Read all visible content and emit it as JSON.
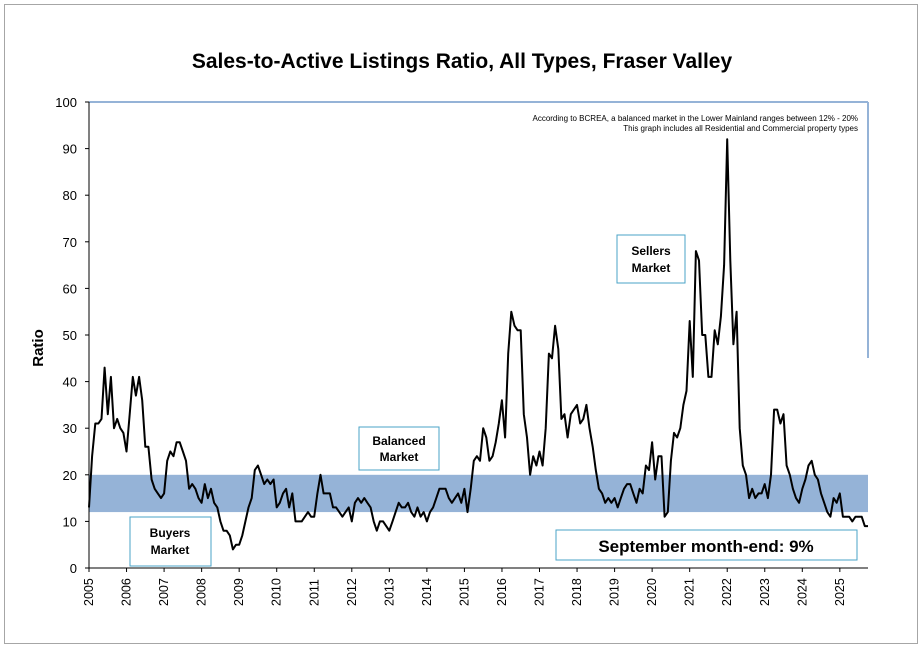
{
  "chart_data": {
    "type": "line",
    "title": "Sales-to-Active Listings Ratio, All Types, Fraser Valley",
    "ylabel": "Ratio",
    "xlabel": "",
    "ylim": [
      0,
      100
    ],
    "yticks": [
      0,
      10,
      20,
      30,
      40,
      50,
      60,
      70,
      80,
      90,
      100
    ],
    "xlim": [
      2005.0,
      2025.75
    ],
    "xticks": [
      "2005",
      "2006",
      "2007",
      "2008",
      "2009",
      "2010",
      "2011",
      "2012",
      "2013",
      "2014",
      "2015",
      "2016",
      "2017",
      "2018",
      "2019",
      "2020",
      "2021",
      "2022",
      "2023",
      "2024",
      "2025"
    ],
    "balanced_band": [
      12,
      20
    ],
    "notes": [
      "According to BCREA, a balanced market in the Lower Mainland ranges between 12% - 20%",
      "This graph includes all Residential and Commercial property types"
    ],
    "labels": {
      "sellers_line1": "Sellers",
      "sellers_line2": "Market",
      "balanced_line1": "Balanced",
      "balanced_line2": "Market",
      "buyers_line1": "Buyers",
      "buyers_line2": "Market"
    },
    "footer": "September month-end: 9%",
    "series": [
      {
        "name": "Sales-to-Active Listings Ratio",
        "x_start": 2005.0,
        "step": 0.08333,
        "values": [
          13,
          24,
          31,
          31,
          32,
          43,
          33,
          41,
          30,
          32,
          30,
          29,
          25,
          33,
          41,
          37,
          41,
          36,
          26,
          26,
          19,
          17,
          16,
          15,
          16,
          23,
          25,
          24,
          27,
          27,
          25,
          23,
          17,
          18,
          17,
          15,
          14,
          18,
          15,
          17,
          14,
          13,
          10,
          8,
          8,
          7,
          4,
          5,
          5,
          7,
          10,
          13,
          15,
          21,
          22,
          20,
          18,
          19,
          18,
          19,
          13,
          14,
          16,
          17,
          13,
          16,
          10,
          10,
          10,
          11,
          12,
          11,
          11,
          16,
          20,
          16,
          16,
          16,
          13,
          13,
          12,
          11,
          12,
          13,
          10,
          14,
          15,
          14,
          15,
          14,
          13,
          10,
          8,
          10,
          10,
          9,
          8,
          10,
          12,
          14,
          13,
          13,
          14,
          12,
          11,
          13,
          11,
          12,
          10,
          12,
          13,
          15,
          17,
          17,
          17,
          15,
          14,
          15,
          16,
          14,
          17,
          12,
          17,
          23,
          24,
          23,
          30,
          28,
          23,
          24,
          27,
          31,
          36,
          28,
          46,
          55,
          52,
          51,
          51,
          33,
          28,
          20,
          24,
          22,
          25,
          22,
          30,
          46,
          45,
          52,
          47,
          32,
          33,
          28,
          33,
          34,
          35,
          31,
          32,
          35,
          30,
          26,
          21,
          17,
          16,
          14,
          15,
          14,
          15,
          13,
          15,
          17,
          18,
          18,
          16,
          14,
          17,
          16,
          22,
          21,
          27,
          19,
          24,
          24,
          11,
          12,
          23,
          29,
          28,
          30,
          35,
          38,
          53,
          41,
          68,
          66,
          50,
          50,
          41,
          41,
          51,
          48,
          54,
          65,
          92,
          66,
          48,
          55,
          30,
          22,
          20,
          15,
          17,
          15,
          16,
          16,
          18,
          15,
          20,
          34,
          34,
          31,
          33,
          22,
          20,
          17,
          15,
          14,
          17,
          19,
          22,
          23,
          20,
          19,
          16,
          14,
          12,
          11,
          15,
          14,
          16,
          11,
          11,
          11,
          10,
          11,
          11,
          11,
          9,
          9
        ]
      }
    ]
  }
}
